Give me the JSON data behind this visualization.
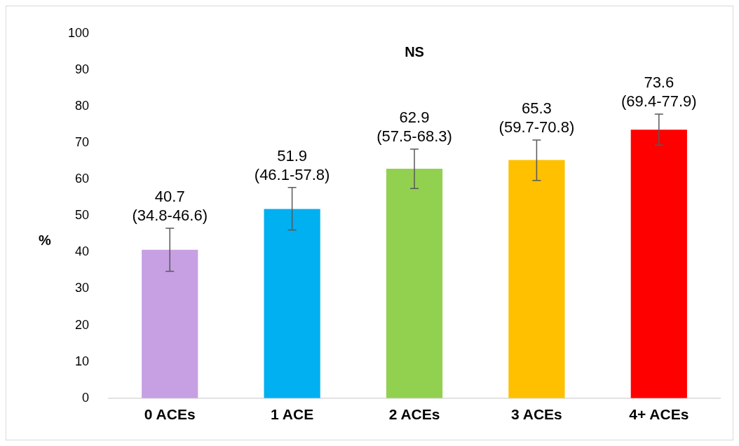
{
  "chart_data": {
    "type": "bar",
    "title": "NS",
    "ylabel": "%",
    "categories": [
      "0 ACEs",
      "1 ACE",
      "2 ACEs",
      "3 ACEs",
      "4+ ACEs"
    ],
    "values": [
      40.7,
      51.9,
      62.9,
      65.3,
      73.6
    ],
    "colors": [
      "#c6a0e2",
      "#00b0f0",
      "#92d050",
      "#ffc000",
      "#ff0000"
    ],
    "errors": [
      [
        34.8,
        46.6
      ],
      [
        46.1,
        57.8
      ],
      [
        57.5,
        68.3
      ],
      [
        59.7,
        70.8
      ],
      [
        69.4,
        77.9
      ]
    ],
    "value_labels": [
      "40.7\n(34.8-46.6)",
      "51.9\n(46.1-57.8)",
      "62.9\n(57.5-68.3)",
      "65.3\n(59.7-70.8)",
      "73.6\n(69.4-77.9)"
    ],
    "ylim": [
      0,
      100
    ],
    "yticks": [
      0,
      10,
      20,
      30,
      40,
      50,
      60,
      70,
      80,
      90,
      100
    ],
    "grid": false,
    "legend": false
  }
}
